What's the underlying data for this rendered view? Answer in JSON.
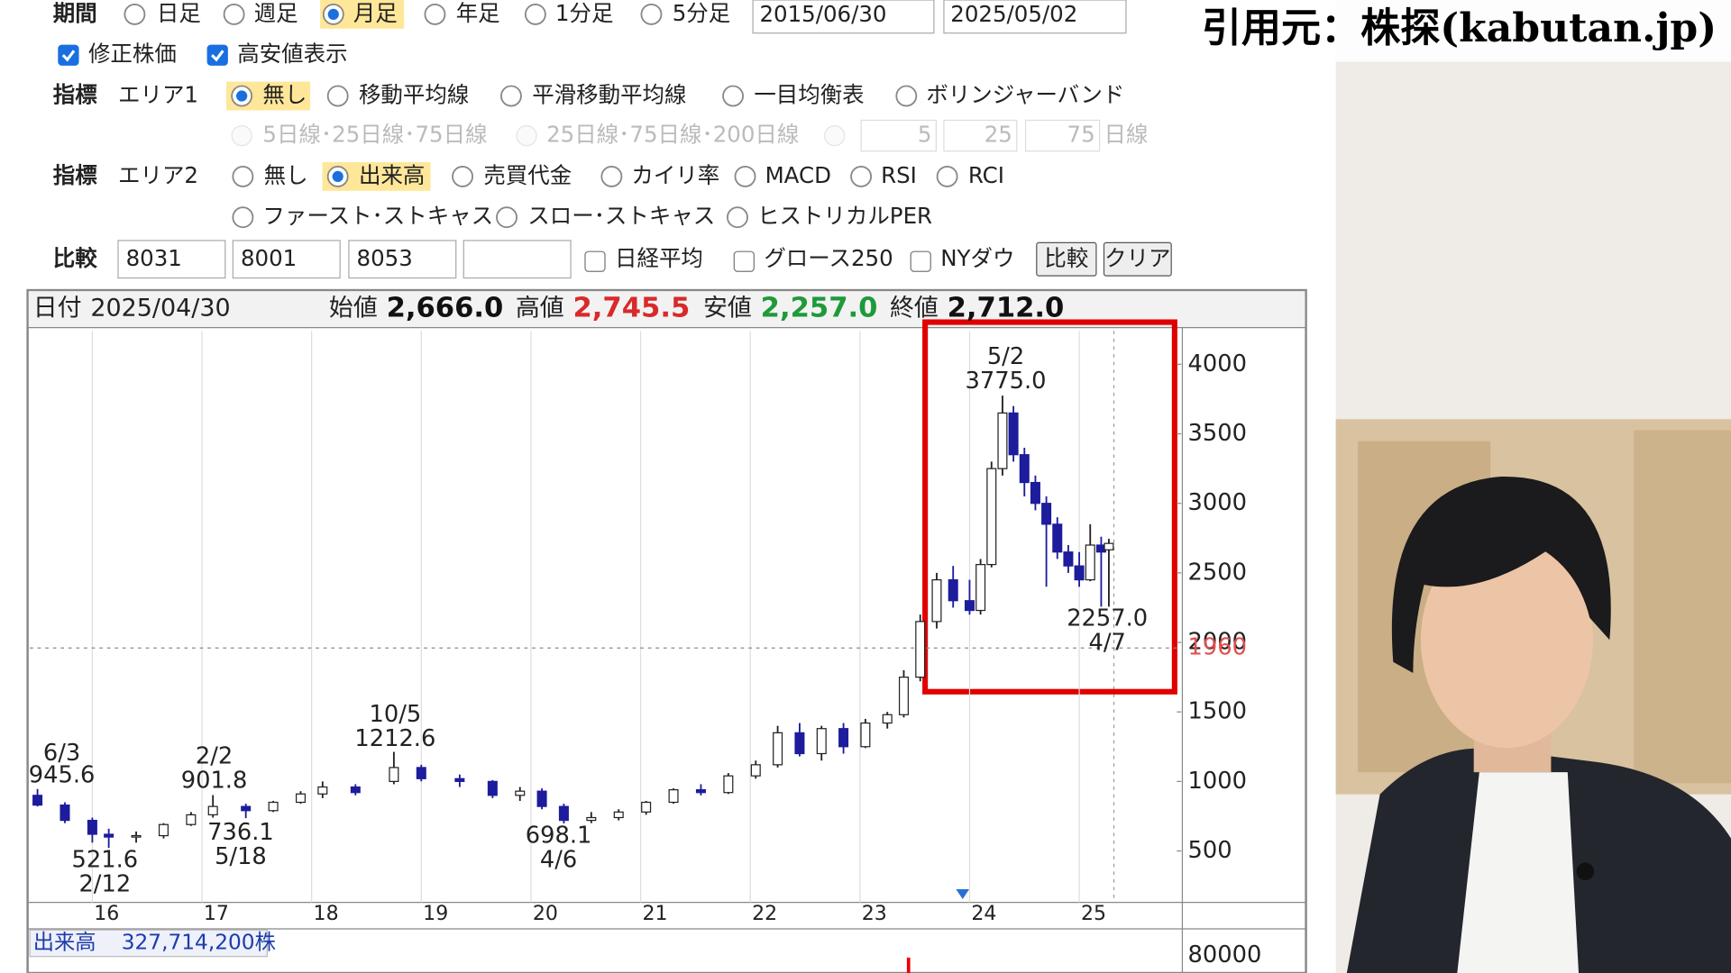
{
  "controls": {
    "period_label": "期間",
    "period_options": [
      "日足",
      "週足",
      "月足",
      "年足",
      "1分足",
      "5分足"
    ],
    "date_from": "2015/06/30",
    "date_to": "2025/05/02",
    "checkboxes": [
      "修正株価",
      "高安値表示"
    ],
    "area1_label": "指標",
    "area1_name": "エリア1",
    "area1_options": [
      "無し",
      "移動平均線",
      "平滑移動平均線",
      "一目均衡表",
      "ボリンジャーバンド"
    ],
    "ma_options": [
      "5日線･25日線･75日線",
      "25日線･75日線･200日線"
    ],
    "ma_inputs": [
      "5",
      "25",
      "75"
    ],
    "ma_unit": "日線",
    "area2_label": "指標",
    "area2_name": "エリア2",
    "area2_options": [
      "無し",
      "出来高",
      "売買代金",
      "カイリ率",
      "MACD",
      "RSI",
      "RCI",
      "ファースト･ストキャス",
      "スロー･ストキャス",
      "ヒストリカルPER"
    ],
    "compare_label": "比較",
    "compare_inputs": [
      "8031",
      "8001",
      "8053"
    ],
    "compare_checks": [
      "日経平均",
      "グロース250",
      "NYダウ"
    ],
    "buttons": [
      "比較",
      "クリア"
    ]
  },
  "quote": {
    "date_label": "日付",
    "date": "2025/04/30",
    "open_label": "始値",
    "open": "2,666.0",
    "high_label": "高値",
    "high": "2,745.5",
    "low_label": "安値",
    "low": "2,257.0",
    "close_label": "終値",
    "close": "2,712.0"
  },
  "chart_data": {
    "type": "candlestick",
    "x": [
      2015.5,
      2015.75,
      2016.0,
      2016.15,
      2016.4,
      2016.65,
      2016.9,
      2017.1,
      2017.4,
      2017.65,
      2017.9,
      2018.1,
      2018.4,
      2018.75,
      2019.0,
      2019.35,
      2019.65,
      2019.9,
      2020.1,
      2020.3,
      2020.55,
      2020.8,
      2021.05,
      2021.3,
      2021.55,
      2021.8,
      2022.05,
      2022.25,
      2022.45,
      2022.65,
      2022.85,
      2023.05,
      2023.25,
      2023.4,
      2023.55,
      2023.7,
      2023.85,
      2024.0,
      2024.1,
      2024.2,
      2024.3,
      2024.4,
      2024.5,
      2024.6,
      2024.7,
      2024.8,
      2024.9,
      2025.0,
      2025.1,
      2025.2,
      2025.27
    ],
    "open": [
      900,
      830,
      720,
      620,
      600,
      610,
      690,
      760,
      820,
      790,
      850,
      910,
      960,
      1000,
      1100,
      1020,
      1000,
      900,
      930,
      820,
      720,
      740,
      780,
      850,
      940,
      920,
      1040,
      1120,
      1350,
      1200,
      1380,
      1250,
      1420,
      1480,
      1750,
      2150,
      2450,
      2300,
      2230,
      2560,
      3250,
      3650,
      3350,
      3150,
      3000,
      2850,
      2650,
      2550,
      2450,
      2700,
      2666
    ],
    "high": [
      945.6,
      850,
      740,
      660,
      640,
      700,
      780,
      901.8,
      840,
      860,
      930,
      1000,
      980,
      1212.6,
      1120,
      1050,
      1010,
      960,
      950,
      840,
      780,
      800,
      860,
      950,
      980,
      1060,
      1150,
      1400,
      1420,
      1400,
      1420,
      1450,
      1500,
      1800,
      2200,
      2500,
      2550,
      2450,
      2600,
      3300,
      3775,
      3700,
      3400,
      3200,
      3050,
      2900,
      2700,
      2650,
      2850,
      2760,
      2745.5
    ],
    "low": [
      820,
      700,
      560,
      521.6,
      560,
      590,
      680,
      740,
      736.1,
      780,
      840,
      880,
      900,
      980,
      1000,
      960,
      880,
      860,
      800,
      698.1,
      700,
      720,
      760,
      840,
      900,
      910,
      1020,
      1100,
      1180,
      1150,
      1200,
      1240,
      1380,
      1460,
      1720,
      2100,
      2250,
      2200,
      2200,
      2540,
      3200,
      3300,
      3050,
      2950,
      2400,
      2600,
      2500,
      2400,
      2440,
      2257,
      2257
    ],
    "close": [
      830,
      720,
      620,
      600,
      610,
      690,
      760,
      820,
      790,
      850,
      910,
      960,
      920,
      1100,
      1020,
      1000,
      900,
      930,
      820,
      720,
      740,
      780,
      850,
      940,
      920,
      1040,
      1120,
      1350,
      1200,
      1380,
      1250,
      1420,
      1480,
      1750,
      2150,
      2450,
      2300,
      2230,
      2560,
      3250,
      3650,
      3350,
      3150,
      3000,
      2850,
      2650,
      2550,
      2450,
      2700,
      2650,
      2712
    ],
    "up_color": "#ffffff",
    "down_color": "#1c1c9c",
    "grid": "x",
    "xlim": [
      2015.43,
      2025.93
    ],
    "ylim": [
      130,
      4240
    ],
    "xticks": [
      {
        "value": 2016,
        "label": "16"
      },
      {
        "value": 2017,
        "label": "17"
      },
      {
        "value": 2018,
        "label": "18"
      },
      {
        "value": 2019,
        "label": "19"
      },
      {
        "value": 2020,
        "label": "20"
      },
      {
        "value": 2021,
        "label": "21"
      },
      {
        "value": 2022,
        "label": "22"
      },
      {
        "value": 2023,
        "label": "23"
      },
      {
        "value": 2024,
        "label": "24"
      },
      {
        "value": 2025,
        "label": "25"
      }
    ],
    "yticks": [
      500,
      1000,
      1500,
      2000,
      2500,
      3000,
      3500,
      4000
    ],
    "ref_line": 1960,
    "annotations": [
      {
        "date": "6/3",
        "price": "945.6"
      },
      {
        "date": "2/2",
        "price": "901.8"
      },
      {
        "date": "10/5",
        "price": "1212.6"
      },
      {
        "date": "5/2",
        "price": "3775.0"
      },
      {
        "date": "2/12",
        "price": "521.6"
      },
      {
        "date": "5/18",
        "price": "736.1"
      },
      {
        "date": "4/6",
        "price": "698.1"
      },
      {
        "date": "4/7",
        "price": "2257.0"
      }
    ]
  },
  "volume": {
    "label": "出来高",
    "value": "327,714,200株",
    "yticks": [
      80000
    ]
  },
  "credit": "引用元：株探(kabutan.jp)"
}
